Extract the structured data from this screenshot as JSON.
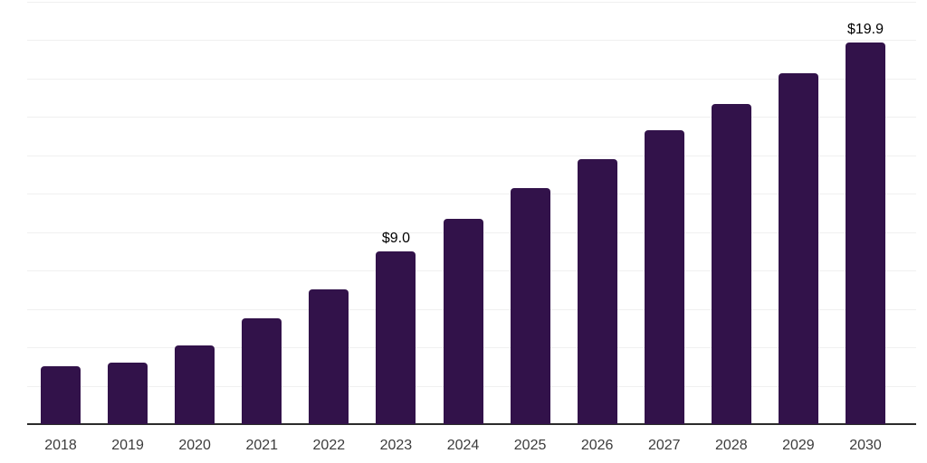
{
  "chart_data": {
    "type": "bar",
    "title": "",
    "xlabel": "",
    "ylabel": "",
    "categories": [
      "2018",
      "2019",
      "2020",
      "2021",
      "2022",
      "2023",
      "2024",
      "2025",
      "2026",
      "2027",
      "2028",
      "2029",
      "2030"
    ],
    "values": [
      3.0,
      3.2,
      4.1,
      5.5,
      7.0,
      9.0,
      10.7,
      12.3,
      13.8,
      15.3,
      16.7,
      18.3,
      19.9
    ],
    "data_labels": {
      "2023": "$9.0",
      "2030": "$19.9"
    },
    "ylim": [
      0,
      22
    ],
    "gridline_step": 2,
    "grid": true,
    "legend": "none",
    "colors": {
      "bar": "#32124a",
      "axis_line": "#2b2b2b",
      "gridline": "#f0f0f0",
      "tick_label": "#3c3c3c",
      "data_label": "#000000",
      "background": "#ffffff"
    }
  }
}
